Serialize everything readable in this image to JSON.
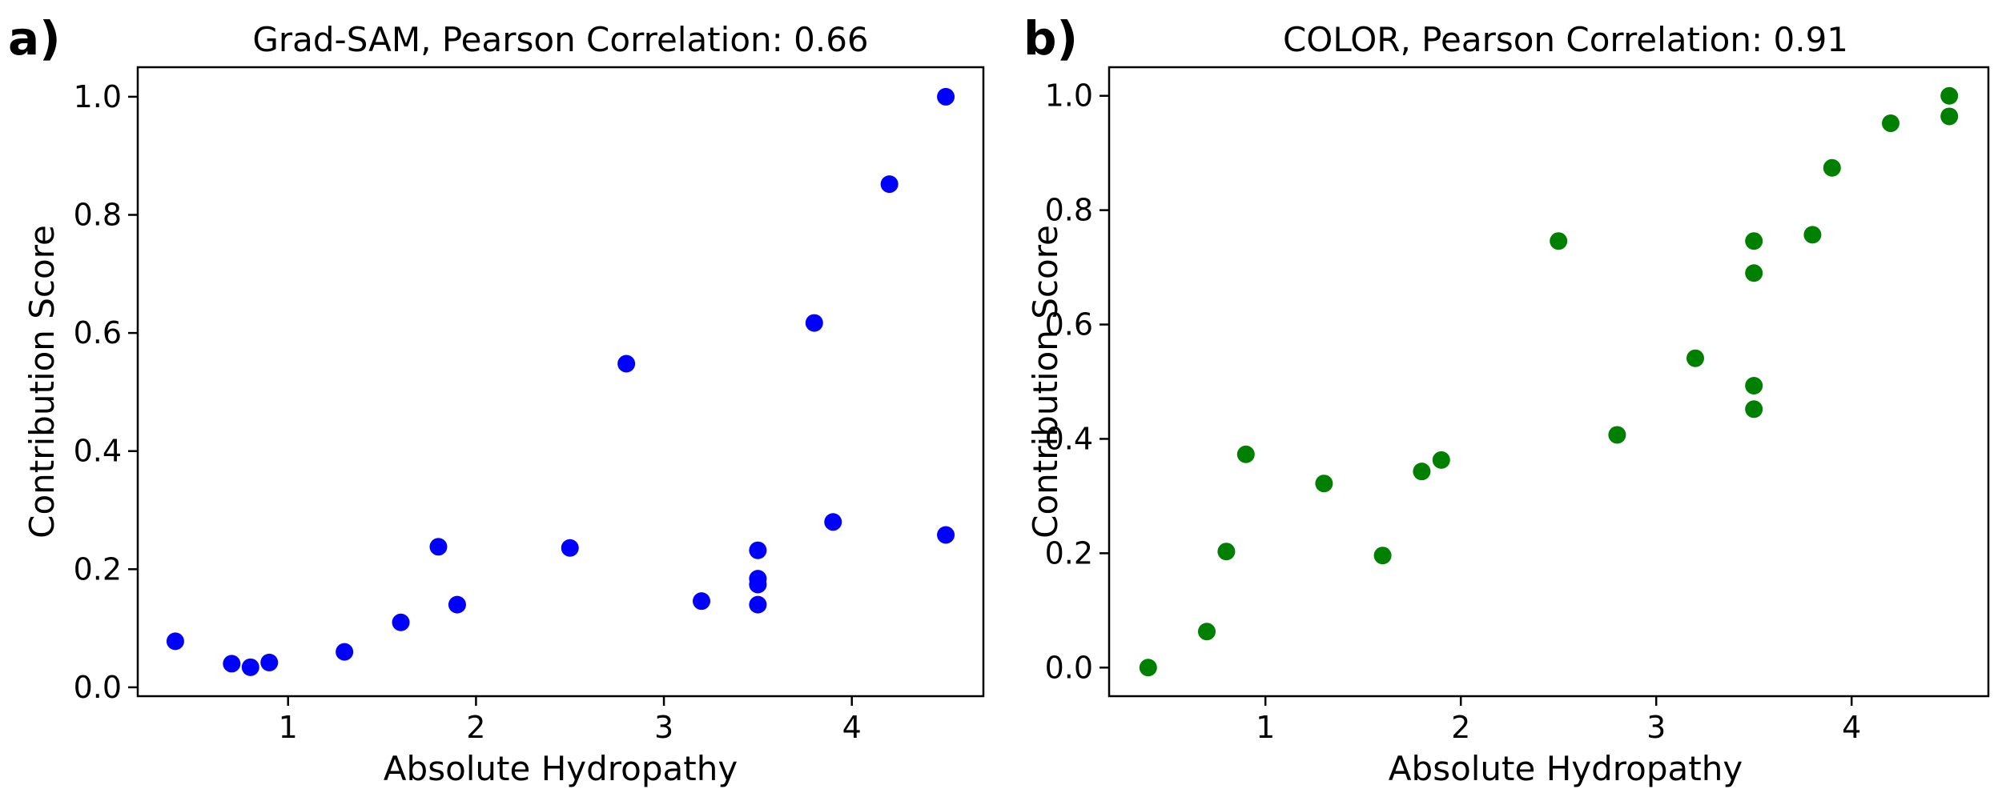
{
  "chart_data": [
    {
      "type": "scatter",
      "panel_label": "a)",
      "title": "Grad-SAM, Pearson Correlation: 0.66",
      "xlabel": "Absolute Hydropathy",
      "ylabel": "Contribution Score",
      "xlim": [
        0.2,
        4.7
      ],
      "ylim": [
        -0.015,
        1.05
      ],
      "xticks": [
        1,
        2,
        3,
        4
      ],
      "xtick_labels": [
        "1",
        "2",
        "3",
        "4"
      ],
      "yticks": [
        0.0,
        0.2,
        0.4,
        0.6,
        0.8,
        1.0
      ],
      "ytick_labels": [
        "0.0",
        "0.2",
        "0.4",
        "0.6",
        "0.8",
        "1.0"
      ],
      "color": "#0000ff",
      "points": [
        [
          0.4,
          0.078
        ],
        [
          0.7,
          0.04
        ],
        [
          0.8,
          0.034
        ],
        [
          0.9,
          0.042
        ],
        [
          1.3,
          0.06
        ],
        [
          1.6,
          0.11
        ],
        [
          1.8,
          0.238
        ],
        [
          1.9,
          0.14
        ],
        [
          2.5,
          0.236
        ],
        [
          2.8,
          0.548
        ],
        [
          3.2,
          0.146
        ],
        [
          3.5,
          0.232
        ],
        [
          3.5,
          0.184
        ],
        [
          3.5,
          0.174
        ],
        [
          3.5,
          0.14
        ],
        [
          3.8,
          0.617
        ],
        [
          3.9,
          0.28
        ],
        [
          4.2,
          0.852
        ],
        [
          4.5,
          1.0
        ],
        [
          4.5,
          0.258
        ]
      ]
    },
    {
      "type": "scatter",
      "panel_label": "b)",
      "title": "COLOR, Pearson Correlation: 0.91",
      "xlabel": "Absolute Hydropathy",
      "ylabel": "Contribution Score",
      "xlim": [
        0.2,
        4.7
      ],
      "ylim": [
        -0.05,
        1.05
      ],
      "xticks": [
        1,
        2,
        3,
        4
      ],
      "xtick_labels": [
        "1",
        "2",
        "3",
        "4"
      ],
      "yticks": [
        0.0,
        0.2,
        0.4,
        0.6,
        0.8,
        1.0
      ],
      "ytick_labels": [
        "0.0",
        "0.2",
        "0.4",
        "0.6",
        "0.8",
        "1.0"
      ],
      "color": "#008000",
      "points": [
        [
          0.4,
          0.0
        ],
        [
          0.7,
          0.063
        ],
        [
          0.8,
          0.203
        ],
        [
          0.9,
          0.373
        ],
        [
          1.3,
          0.322
        ],
        [
          1.6,
          0.196
        ],
        [
          1.8,
          0.343
        ],
        [
          1.9,
          0.363
        ],
        [
          2.5,
          0.746
        ],
        [
          2.8,
          0.407
        ],
        [
          3.2,
          0.541
        ],
        [
          3.5,
          0.746
        ],
        [
          3.5,
          0.69
        ],
        [
          3.5,
          0.493
        ],
        [
          3.5,
          0.452
        ],
        [
          3.8,
          0.757
        ],
        [
          3.9,
          0.874
        ],
        [
          4.2,
          0.952
        ],
        [
          4.5,
          1.0
        ],
        [
          4.5,
          0.964
        ]
      ]
    }
  ]
}
